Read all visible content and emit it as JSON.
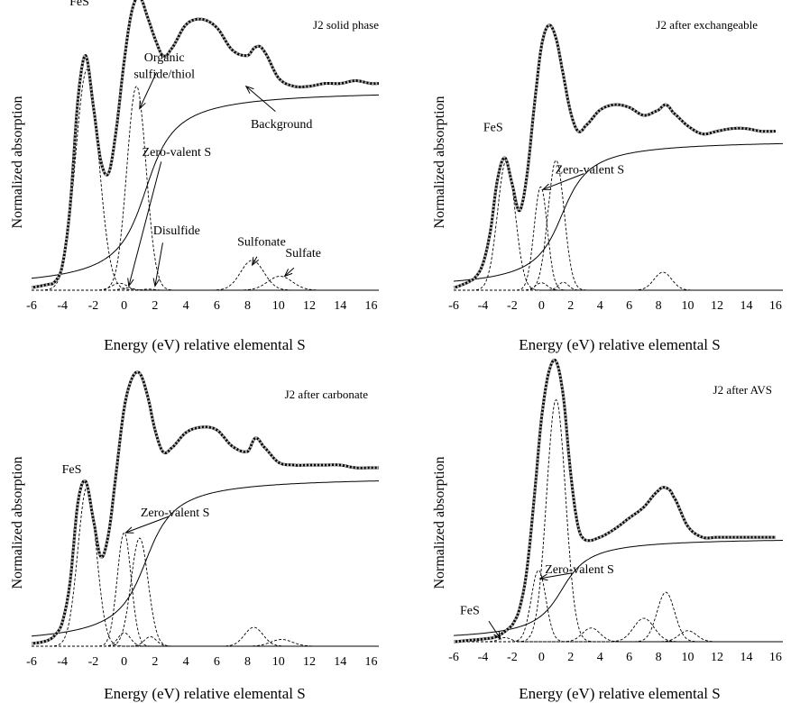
{
  "chart_data": [
    {
      "type": "line",
      "title": "J2 solid phase",
      "xlabel": "Energy (eV) relative elemental S",
      "ylabel": "Normalized absorption",
      "xlim": [
        -6,
        16.5
      ],
      "xticks": [
        "-6",
        "-4",
        "-2",
        "0",
        "2",
        "4",
        "6",
        "8",
        "10",
        "12",
        "14",
        "16"
      ],
      "grid": false,
      "legend": "none",
      "edge_step": 0.72,
      "annotations": [
        {
          "text": "FeS",
          "x": -2.9,
          "y": 1.02
        },
        {
          "text": "Organic",
          "x": 2.6,
          "y": 0.82
        },
        {
          "text": "sulfide/thiol",
          "x": 2.6,
          "y": 0.76
        },
        {
          "text": "Background",
          "x": 10.2,
          "y": 0.58
        },
        {
          "text": "Zero-valent S",
          "x": 3.4,
          "y": 0.48
        },
        {
          "text": "Disulfide",
          "x": 3.4,
          "y": 0.2
        },
        {
          "text": "Sulfonate",
          "x": 8.9,
          "y": 0.16
        },
        {
          "text": "Sulfate",
          "x": 11.6,
          "y": 0.12
        }
      ],
      "arrows": [
        {
          "from": [
            2.1,
            0.78
          ],
          "to": [
            1.0,
            0.65
          ]
        },
        {
          "from": [
            9.8,
            0.64
          ],
          "to": [
            7.9,
            0.73
          ]
        },
        {
          "from": [
            2.4,
            0.46
          ],
          "to": [
            0.3,
            0.015
          ]
        },
        {
          "from": [
            2.5,
            0.17
          ],
          "to": [
            2.0,
            0.015
          ]
        },
        {
          "from": [
            8.6,
            0.12
          ],
          "to": [
            8.3,
            0.09
          ]
        },
        {
          "from": [
            11.0,
            0.08
          ],
          "to": [
            10.4,
            0.05
          ]
        }
      ],
      "components": [
        {
          "name": "FeS",
          "center": -2.4,
          "width": 0.75,
          "height": 0.79
        },
        {
          "name": "Zero-valent S",
          "center": -0.3,
          "width": 0.5,
          "height": 0.025
        },
        {
          "name": "Disulfide",
          "center": 0.1,
          "width": 0.35,
          "height": 0.008
        },
        {
          "name": "Organic sulfide/thiol",
          "center": 0.8,
          "width": 0.62,
          "height": 0.73
        },
        {
          "name": "Disulfide",
          "center": 1.6,
          "width": 0.35,
          "height": 0.004
        },
        {
          "name": "Sulfonate",
          "center": 8.3,
          "width": 0.75,
          "height": 0.107
        },
        {
          "name": "Sulfate",
          "center": 10.1,
          "width": 0.8,
          "height": 0.05
        }
      ],
      "spectrum_x": [
        -6,
        -5,
        -4.5,
        -4,
        -3.5,
        -3,
        -2.5,
        -2,
        -1.5,
        -1,
        -0.5,
        0,
        0.5,
        1,
        1.5,
        2,
        2.5,
        3,
        4,
        5,
        6,
        7,
        8,
        8.5,
        9,
        10,
        11,
        12,
        13,
        14,
        15,
        16,
        16.5
      ],
      "spectrum_y": [
        0.01,
        0.02,
        0.03,
        0.09,
        0.3,
        0.68,
        0.84,
        0.66,
        0.46,
        0.42,
        0.58,
        0.82,
        1.0,
        1.05,
        0.98,
        0.9,
        0.84,
        0.86,
        0.95,
        0.97,
        0.94,
        0.86,
        0.84,
        0.87,
        0.86,
        0.76,
        0.73,
        0.73,
        0.74,
        0.74,
        0.75,
        0.74,
        0.74
      ]
    },
    {
      "type": "line",
      "title": "J2 after exchangeable",
      "xlabel": "Energy (eV) relative elemental S",
      "ylabel": "Normalized absorption",
      "xlim": [
        -6,
        16.5
      ],
      "xticks": [
        "-6",
        "-4",
        "-2",
        "0",
        "2",
        "4",
        "6",
        "8",
        "10",
        "12",
        "14",
        "16"
      ],
      "grid": false,
      "legend": "none",
      "edge_step": 0.57,
      "annotations": [
        {
          "text": "FeS",
          "x": -3.3,
          "y": 0.6
        },
        {
          "text": "Zero-valent S",
          "x": 3.3,
          "y": 0.44
        }
      ],
      "arrows": [
        {
          "from": [
            2.9,
            0.44
          ],
          "to": [
            0.1,
            0.38
          ]
        }
      ],
      "components": [
        {
          "name": "FeS",
          "center": -2.4,
          "width": 0.6,
          "height": 0.49
        },
        {
          "name": "Zero-valent S",
          "center": -0.05,
          "width": 0.45,
          "height": 0.39
        },
        {
          "name": "component",
          "center": 1.0,
          "width": 0.55,
          "height": 0.49
        },
        {
          "name": "component",
          "center": 0.0,
          "width": 0.4,
          "height": 0.028
        },
        {
          "name": "component",
          "center": 1.5,
          "width": 0.35,
          "height": 0.03
        },
        {
          "name": "component",
          "center": 8.3,
          "width": 0.6,
          "height": 0.068
        }
      ],
      "spectrum_x": [
        -6,
        -5,
        -4.5,
        -4,
        -3.5,
        -3,
        -2.5,
        -2,
        -1.5,
        -1,
        -0.5,
        0,
        0.5,
        1,
        1.5,
        2,
        2.5,
        3,
        4,
        5,
        6,
        7,
        8,
        8.5,
        9,
        10,
        11,
        12,
        13,
        14,
        15,
        16
      ],
      "spectrum_y": [
        0.01,
        0.03,
        0.05,
        0.1,
        0.22,
        0.42,
        0.5,
        0.4,
        0.3,
        0.43,
        0.69,
        0.92,
        1.0,
        0.95,
        0.81,
        0.67,
        0.6,
        0.62,
        0.68,
        0.7,
        0.69,
        0.66,
        0.68,
        0.7,
        0.67,
        0.62,
        0.59,
        0.6,
        0.61,
        0.61,
        0.6,
        0.6
      ]
    },
    {
      "type": "line",
      "title": "J2 after carbonate",
      "xlabel": "Energy (eV) relative elemental S",
      "ylabel": "Normalized absorption",
      "xlim": [
        -6,
        16.5
      ],
      "xticks": [
        "-6",
        "-4",
        "-2",
        "0",
        "2",
        "4",
        "6",
        "8",
        "10",
        "12",
        "14",
        "16"
      ],
      "grid": false,
      "legend": "none",
      "edge_step": 0.63,
      "annotations": [
        {
          "text": "FeS",
          "x": -3.4,
          "y": 0.64
        },
        {
          "text": "Zero-valent S",
          "x": 3.3,
          "y": 0.48
        }
      ],
      "arrows": [
        {
          "from": [
            2.9,
            0.48
          ],
          "to": [
            0.1,
            0.42
          ]
        }
      ],
      "components": [
        {
          "name": "FeS",
          "center": -2.4,
          "width": 0.6,
          "height": 0.59
        },
        {
          "name": "Zero-valent S",
          "center": 0.0,
          "width": 0.45,
          "height": 0.42
        },
        {
          "name": "component",
          "center": 1.0,
          "width": 0.55,
          "height": 0.4
        },
        {
          "name": "component",
          "center": 0.0,
          "width": 0.4,
          "height": 0.05
        },
        {
          "name": "component",
          "center": 1.7,
          "width": 0.4,
          "height": 0.035
        },
        {
          "name": "component",
          "center": 8.4,
          "width": 0.6,
          "height": 0.07
        },
        {
          "name": "component",
          "center": 10.2,
          "width": 0.7,
          "height": 0.025
        }
      ],
      "spectrum_x": [
        -6,
        -5,
        -4.5,
        -4,
        -3.5,
        -3,
        -2.5,
        -2,
        -1.5,
        -1,
        -0.5,
        0,
        0.5,
        1,
        1.5,
        2,
        2.5,
        3,
        4,
        5,
        6,
        7,
        8,
        8.5,
        9,
        10,
        11,
        12,
        13,
        14,
        15,
        16,
        16.5
      ],
      "spectrum_y": [
        0.01,
        0.02,
        0.04,
        0.09,
        0.24,
        0.53,
        0.61,
        0.47,
        0.33,
        0.42,
        0.65,
        0.88,
        0.99,
        1.01,
        0.93,
        0.8,
        0.72,
        0.73,
        0.79,
        0.81,
        0.8,
        0.74,
        0.72,
        0.77,
        0.74,
        0.68,
        0.67,
        0.67,
        0.67,
        0.67,
        0.66,
        0.66,
        0.66
      ]
    },
    {
      "type": "line",
      "title": "J2 after AVS",
      "xlabel": "Energy (eV) relative elemental S",
      "ylabel": "Normalized absorption",
      "xlim": [
        -6,
        16.5
      ],
      "xticks": [
        "-6",
        "-4",
        "-2",
        "0",
        "2",
        "4",
        "6",
        "8",
        "10",
        "12",
        "14",
        "16"
      ],
      "grid": false,
      "legend": "none",
      "edge_step": 0.38,
      "annotations": [
        {
          "text": "FeS",
          "x": -4.9,
          "y": 0.1
        },
        {
          "text": "Zero-valent S",
          "x": 2.6,
          "y": 0.25
        }
      ],
      "arrows": [
        {
          "from": [
            -3.6,
            0.075
          ],
          "to": [
            -2.8,
            0.01
          ]
        },
        {
          "from": [
            2.1,
            0.25
          ],
          "to": [
            -0.1,
            0.23
          ]
        }
      ],
      "components": [
        {
          "name": "FeS",
          "center": -2.5,
          "width": 0.4,
          "height": 0.015
        },
        {
          "name": "Zero-valent S",
          "center": -0.2,
          "width": 0.5,
          "height": 0.26
        },
        {
          "name": "component",
          "center": 1.0,
          "width": 0.65,
          "height": 0.88
        },
        {
          "name": "component",
          "center": 3.4,
          "width": 0.6,
          "height": 0.05
        },
        {
          "name": "component",
          "center": 7.0,
          "width": 0.7,
          "height": 0.085
        },
        {
          "name": "component",
          "center": 8.5,
          "width": 0.6,
          "height": 0.18
        },
        {
          "name": "component",
          "center": 10.0,
          "width": 0.6,
          "height": 0.04
        }
      ],
      "spectrum_x": [
        -6,
        -5,
        -4,
        -3,
        -2,
        -1.5,
        -1,
        -0.5,
        0,
        0.5,
        1,
        1.5,
        2,
        2.5,
        3,
        4,
        5,
        6,
        7,
        8,
        8.5,
        9,
        10,
        11,
        12,
        13,
        14,
        15,
        16
      ],
      "spectrum_y": [
        0.0,
        0.005,
        0.01,
        0.02,
        0.06,
        0.12,
        0.26,
        0.52,
        0.81,
        0.98,
        1.02,
        0.89,
        0.61,
        0.42,
        0.37,
        0.38,
        0.41,
        0.45,
        0.49,
        0.55,
        0.56,
        0.53,
        0.42,
        0.38,
        0.38,
        0.38,
        0.38,
        0.38,
        0.38
      ]
    }
  ]
}
